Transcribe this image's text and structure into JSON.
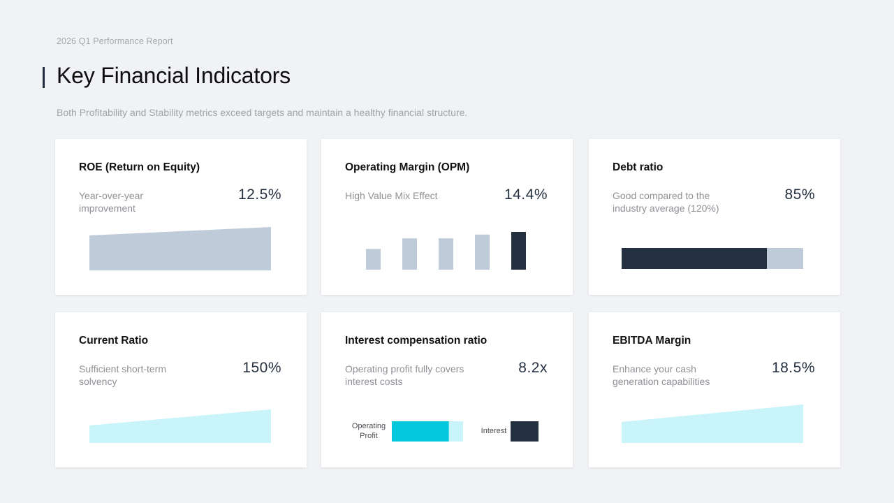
{
  "header": {
    "report_label": "2026 Q1 Performance Report",
    "title": "Key Financial Indicators",
    "subtitle": "Both Profitability and Stability metrics exceed targets and maintain a healthy financial structure."
  },
  "colors": {
    "accent_dark": "#243040",
    "muted_blue": "#bfcbd9",
    "cyan": "#06c8dd",
    "light_cyan": "#c8f4fa"
  },
  "cards": [
    {
      "title": "ROE (Return on Equity)",
      "desc": "Year-over-year improvement",
      "value": "12.5%"
    },
    {
      "title": "Operating Margin (OPM)",
      "desc": "High Value Mix Effect",
      "value": "14.4%",
      "bars": [
        0.55,
        0.83,
        0.83,
        0.93,
        1.0
      ]
    },
    {
      "title": "Debt ratio",
      "desc": "Good compared to the industry average (120%)",
      "value": "85%",
      "fill_fraction": 0.8
    },
    {
      "title": "Current Ratio",
      "desc": "Sufficient short-term solvency",
      "value": "150%"
    },
    {
      "title": "Interest compensation ratio",
      "desc": "Operating profit fully covers interest costs",
      "value": "8.2x",
      "operating_profit_label": "Operating Profit",
      "interest_label": "Interest",
      "operating_profit_fill_fraction": 0.8
    },
    {
      "title": "EBITDA Margin",
      "desc": "Enhance your cash generation capabilities",
      "value": "18.5%"
    }
  ]
}
